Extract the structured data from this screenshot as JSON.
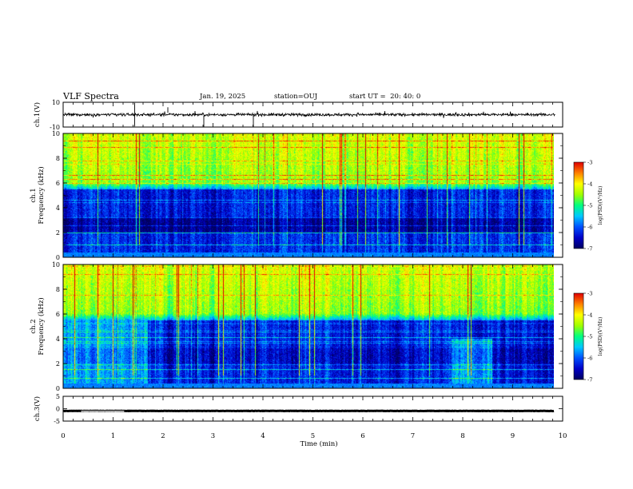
{
  "header": {
    "title": "VLF Spectra",
    "date": "Jan. 19, 2025",
    "station": "station=OUJ",
    "start": "start UT =  20: 40: 0"
  },
  "colors": {
    "colormap": [
      "#000060",
      "#0000c8",
      "#0050ff",
      "#00c8ff",
      "#00ff80",
      "#a0ff00",
      "#ffff00",
      "#ff8000",
      "#e00000",
      "#ffffff"
    ]
  },
  "chart_data": [
    {
      "id": "ch1-waveform",
      "type": "line",
      "ylabel": "ch.1(V)",
      "ylim": [
        -10,
        10
      ],
      "yticks": [
        "10",
        "-10"
      ],
      "xlim": [
        0,
        10
      ],
      "trace_level": 0,
      "trace_extent_min": 9.85
    },
    {
      "id": "ch1-spectrogram",
      "type": "heatmap",
      "ylabel": "ch.1\nFrequency (kHz)",
      "ylim": [
        0,
        10
      ],
      "yticks": [
        "0",
        "2",
        "4",
        "6",
        "8",
        "10"
      ],
      "xlim": [
        0,
        10
      ],
      "colorbar": {
        "label": "log(PSD)(V²/Hz)",
        "range": [
          -7,
          -3
        ],
        "ticks": [
          "-3",
          "-4",
          "-5",
          "-6",
          "-7"
        ]
      }
    },
    {
      "id": "ch2-spectrogram",
      "type": "heatmap",
      "ylabel": "ch.2\nFrequency (kHz)",
      "ylim": [
        0,
        10
      ],
      "yticks": [
        "0",
        "2",
        "4",
        "6",
        "8",
        "10"
      ],
      "xlim": [
        0,
        10
      ],
      "colorbar": {
        "label": "log(PSD)(V²/Hz)",
        "range": [
          -7,
          -3
        ],
        "ticks": [
          "-3",
          "-4",
          "-5",
          "-6",
          "-7"
        ]
      }
    },
    {
      "id": "ch3-waveform",
      "type": "line",
      "ylabel": "ch.3(V)",
      "ylim": [
        -5,
        5
      ],
      "yticks": [
        "5",
        "0",
        "-5"
      ],
      "xlim": [
        0,
        10
      ],
      "trace_level": -0.9,
      "xlabel": "Time (min)",
      "xticks": [
        "0",
        "1",
        "2",
        "3",
        "4",
        "5",
        "6",
        "7",
        "8",
        "9",
        "10"
      ]
    }
  ]
}
